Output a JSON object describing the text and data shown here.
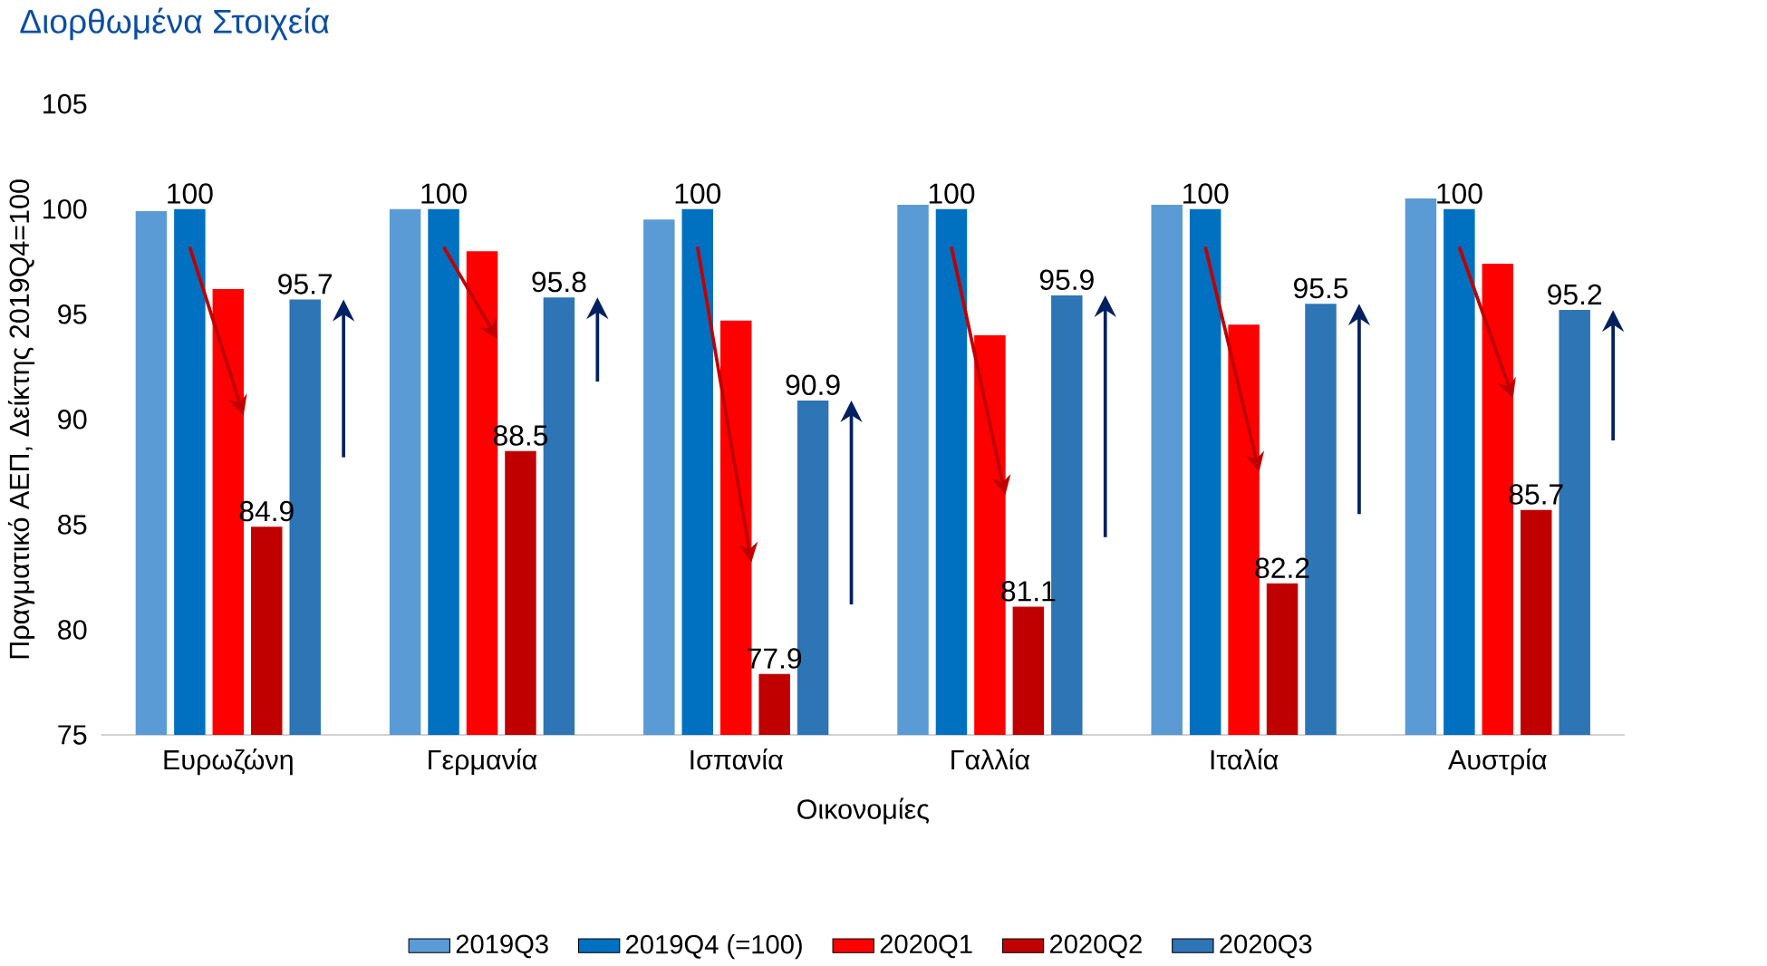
{
  "chart_data": {
    "type": "bar",
    "title": "Διορθωμένα Στοιχεία",
    "xlabel": "Οικονομίες",
    "ylabel": "Πραγματικό ΑΕΠ, Δείκτης 2019Q4=100",
    "categories": [
      "Ευρωζώνη",
      "Γερμανία",
      "Ισπανία",
      "Γαλλία",
      "Ιταλία",
      "Αυστρία"
    ],
    "ylim": [
      75,
      105
    ],
    "yticks": [
      75,
      80,
      85,
      90,
      95,
      100,
      105
    ],
    "legend": "bottom",
    "grid": false,
    "series": [
      {
        "name": "2019Q3",
        "color": "#5b9bd5",
        "values": [
          99.9,
          100.0,
          99.5,
          100.2,
          100.2,
          100.5
        ]
      },
      {
        "name": "2019Q4 (=100)",
        "color": "#0070c0",
        "values": [
          100,
          100,
          100,
          100,
          100,
          100
        ],
        "value_labels": [
          "100",
          "100",
          "100",
          "100",
          "100",
          "100"
        ]
      },
      {
        "name": "2020Q1",
        "color": "#ff0000",
        "values": [
          96.2,
          98.0,
          94.7,
          94.0,
          94.5,
          97.4
        ]
      },
      {
        "name": "2020Q2",
        "color": "#c00000",
        "values": [
          84.9,
          88.5,
          77.9,
          81.1,
          82.2,
          85.7
        ],
        "value_labels": [
          "84.9",
          "88.5",
          "77.9",
          "81.1",
          "82.2",
          "85.7"
        ]
      },
      {
        "name": "2020Q3",
        "color": "#2e75b6",
        "values": [
          95.7,
          95.8,
          90.9,
          95.9,
          95.5,
          95.2
        ],
        "value_labels": [
          "95.7",
          "95.8",
          "90.9",
          "95.9",
          "95.5",
          "95.2"
        ]
      }
    ]
  }
}
